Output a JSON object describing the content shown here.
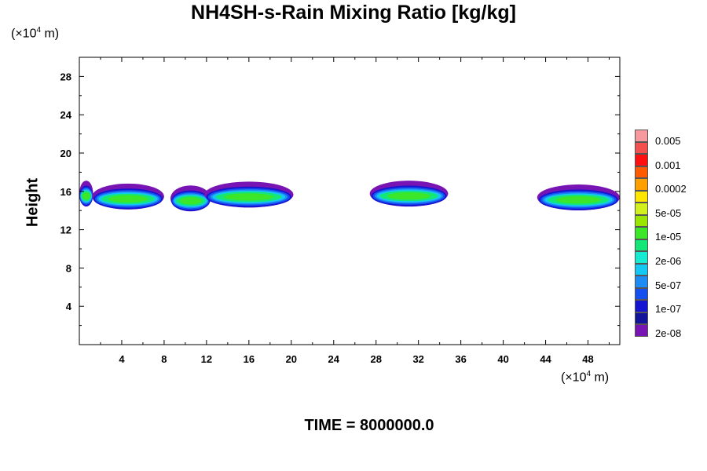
{
  "chart_data": {
    "type": "heatmap",
    "title": "NH4SH-s-Rain Mixing Ratio [kg/kg]",
    "ylabel": "Height",
    "x_unit": {
      "prefix": "(×10",
      "exp": "4",
      "suffix": " m)"
    },
    "y_unit": {
      "prefix": "(×10",
      "exp": "4",
      "suffix": " m)"
    },
    "xlim": [
      0,
      51
    ],
    "ylim": [
      0,
      30
    ],
    "x_ticks": [
      4,
      8,
      12,
      16,
      20,
      24,
      28,
      32,
      36,
      40,
      44,
      48
    ],
    "y_ticks": [
      4,
      8,
      12,
      16,
      20,
      24,
      28
    ],
    "legend": {
      "colors": [
        "#f79aa0",
        "#f35050",
        "#ff1010",
        "#ff5a00",
        "#ffa000",
        "#ffe600",
        "#d2f01e",
        "#9be600",
        "#3ce628",
        "#14e678",
        "#14ebd2",
        "#14c8f5",
        "#1e8cf5",
        "#1450f0",
        "#1414d2",
        "#14149b",
        "#7814b4"
      ],
      "labels": [
        "0.005",
        "0.001",
        "0.0002",
        "5e-05",
        "1e-05",
        "2e-06",
        "5e-07",
        "1e-07",
        "2e-08"
      ],
      "placement": "right"
    },
    "cloud_layers": [
      {
        "x_range": [
          0.0,
          1.3
        ],
        "y_center": 15.6
      },
      {
        "x_range": [
          1.2,
          8.0
        ],
        "y_center": 15.3
      },
      {
        "x_range": [
          8.6,
          12.4
        ],
        "y_center": 15.1
      },
      {
        "x_range": [
          11.8,
          20.2
        ],
        "y_center": 15.5
      },
      {
        "x_range": [
          27.4,
          34.8
        ],
        "y_center": 15.6
      },
      {
        "x_range": [
          43.2,
          51.0
        ],
        "y_center": 15.2
      }
    ]
  },
  "time_label": "TIME = 8000000.0"
}
